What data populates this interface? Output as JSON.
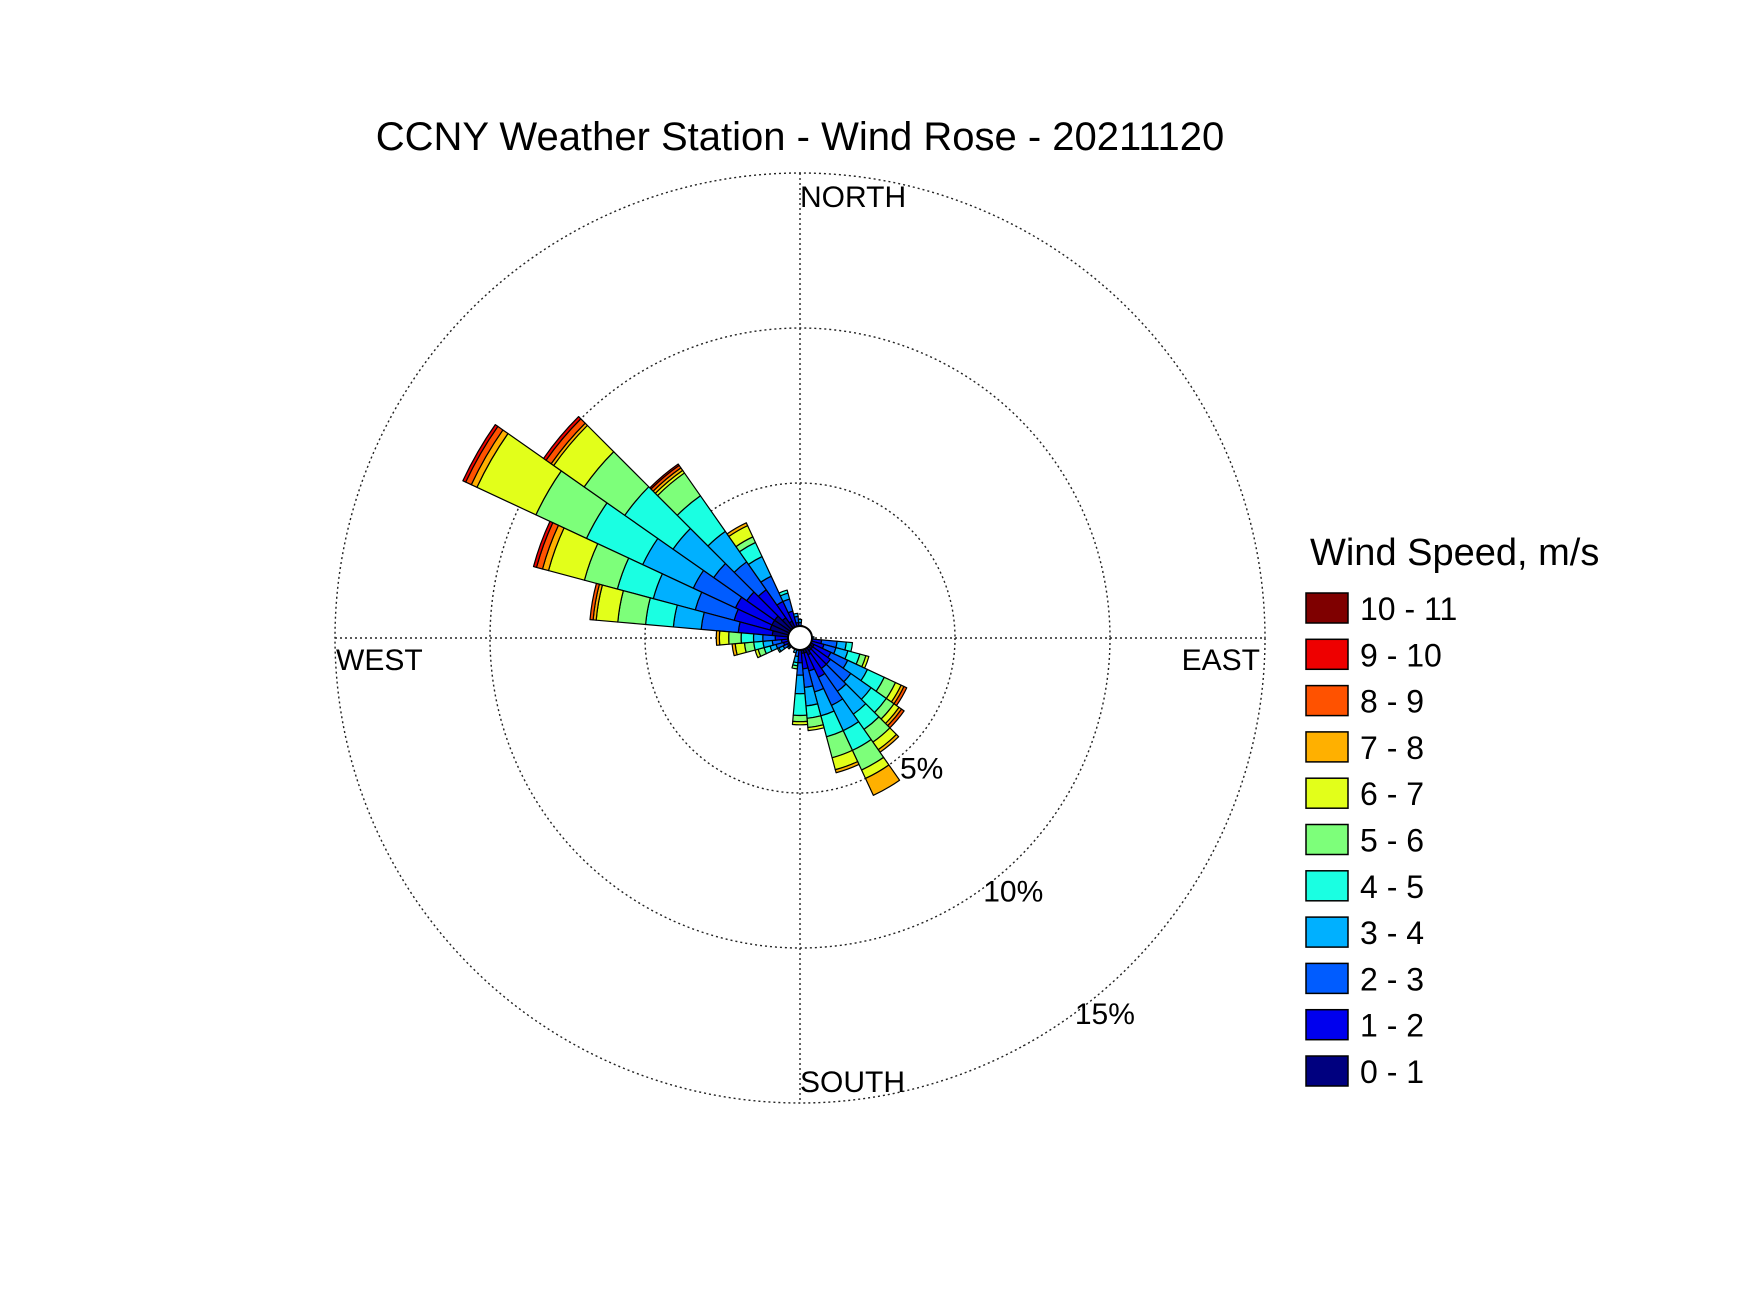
{
  "chart_data": {
    "type": "windrose",
    "title": "CCNY Weather Station - Wind Rose - 20211120",
    "legend_title": "Wind Speed, m/s",
    "legend_position": "right",
    "grid": true,
    "direction_labels": {
      "north": "NORTH",
      "south": "SOUTH",
      "east": "EAST",
      "west": "WEST"
    },
    "radial_axis": {
      "unit": "%",
      "max": 15,
      "rings": [
        5,
        10,
        15
      ],
      "ring_labels": [
        "5%",
        "10%",
        "15%"
      ]
    },
    "speed_bins": [
      {
        "label": "0 - 1",
        "color": "#00007f"
      },
      {
        "label": "1 - 2",
        "color": "#0000ee"
      },
      {
        "label": "2 - 3",
        "color": "#005cff"
      },
      {
        "label": "3 - 4",
        "color": "#00b0ff"
      },
      {
        "label": "4 - 5",
        "color": "#1affe2"
      },
      {
        "label": "5 - 6",
        "color": "#7dff7a"
      },
      {
        "label": "6 - 7",
        "color": "#e2ff1a"
      },
      {
        "label": "7 - 8",
        "color": "#ffb000"
      },
      {
        "label": "8 - 9",
        "color": "#ff5200"
      },
      {
        "label": "9 - 10",
        "color": "#ee0000"
      },
      {
        "label": "10 - 11",
        "color": "#7f0000"
      }
    ],
    "sector_width_deg": 10,
    "series_note_order": "cumulative % frequency per speed bin, low to high",
    "sectors": [
      {
        "direction_deg": 300,
        "cumulative": [
          1.0,
          2.3,
          3.8,
          5.6,
          7.6,
          9.4,
          11.5,
          11.7,
          11.9,
          12.0,
          12.0
        ]
      },
      {
        "direction_deg": 310,
        "cumulative": [
          1.0,
          2.1,
          3.4,
          5.0,
          6.9,
          8.5,
          9.7,
          9.8,
          10.0,
          10.1,
          10.1
        ]
      },
      {
        "direction_deg": 320,
        "cumulative": [
          0.8,
          1.9,
          3.0,
          4.2,
          5.6,
          6.5,
          6.6,
          6.7,
          6.8,
          6.85,
          6.85
        ]
      },
      {
        "direction_deg": 290,
        "cumulative": [
          1.0,
          2.2,
          3.5,
          4.9,
          6.1,
          7.2,
          8.4,
          8.6,
          8.8,
          8.9,
          8.9
        ]
      },
      {
        "direction_deg": 280,
        "cumulative": [
          0.9,
          2.0,
          3.2,
          4.1,
          5.0,
          5.9,
          6.6,
          6.7,
          6.8,
          6.8,
          6.8
        ]
      },
      {
        "direction_deg": 330,
        "cumulative": [
          0.6,
          1.3,
          2.2,
          2.9,
          3.4,
          3.6,
          4.0,
          4.1,
          4.1,
          4.1,
          4.1
        ]
      },
      {
        "direction_deg": 340,
        "cumulative": [
          0.4,
          0.9,
          1.3,
          1.5,
          1.6,
          1.6,
          1.6,
          1.6,
          1.6,
          1.6,
          1.6
        ]
      },
      {
        "direction_deg": 350,
        "cumulative": [
          0.3,
          0.5,
          0.7,
          0.8,
          0.8,
          0.8,
          0.8,
          0.8,
          0.8,
          0.8,
          0.8
        ]
      },
      {
        "direction_deg": 0,
        "cumulative": [
          0.2,
          0.4,
          0.5,
          0.6,
          0.6,
          0.6,
          0.6,
          0.6,
          0.6,
          0.6,
          0.6
        ]
      },
      {
        "direction_deg": 10,
        "cumulative": [
          0.2,
          0.3,
          0.4,
          0.4,
          0.4,
          0.4,
          0.4,
          0.4,
          0.4,
          0.4,
          0.4
        ]
      },
      {
        "direction_deg": 20,
        "cumulative": [
          0.2,
          0.3,
          0.3,
          0.3,
          0.3,
          0.3,
          0.3,
          0.3,
          0.3,
          0.3,
          0.3
        ]
      },
      {
        "direction_deg": 30,
        "cumulative": [
          0.15,
          0.25,
          0.3,
          0.3,
          0.3,
          0.3,
          0.3,
          0.3,
          0.3,
          0.3,
          0.3
        ]
      },
      {
        "direction_deg": 40,
        "cumulative": [
          0.15,
          0.2,
          0.25,
          0.25,
          0.25,
          0.25,
          0.25,
          0.25,
          0.25,
          0.25,
          0.25
        ]
      },
      {
        "direction_deg": 50,
        "cumulative": [
          0.15,
          0.2,
          0.25,
          0.25,
          0.25,
          0.25,
          0.25,
          0.25,
          0.25,
          0.25,
          0.25
        ]
      },
      {
        "direction_deg": 60,
        "cumulative": [
          0.15,
          0.2,
          0.25,
          0.25,
          0.25,
          0.25,
          0.25,
          0.25,
          0.25,
          0.25,
          0.25
        ]
      },
      {
        "direction_deg": 70,
        "cumulative": [
          0.15,
          0.2,
          0.25,
          0.25,
          0.25,
          0.25,
          0.25,
          0.25,
          0.25,
          0.25,
          0.25
        ]
      },
      {
        "direction_deg": 80,
        "cumulative": [
          0.15,
          0.25,
          0.3,
          0.3,
          0.3,
          0.3,
          0.3,
          0.3,
          0.3,
          0.3,
          0.3
        ]
      },
      {
        "direction_deg": 90,
        "cumulative": [
          0.2,
          0.35,
          0.4,
          0.45,
          0.45,
          0.45,
          0.45,
          0.45,
          0.45,
          0.45,
          0.45
        ]
      },
      {
        "direction_deg": 100,
        "cumulative": [
          0.3,
          0.7,
          1.2,
          1.5,
          1.7,
          1.7,
          1.7,
          1.7,
          1.7,
          1.7,
          1.7
        ]
      },
      {
        "direction_deg": 110,
        "cumulative": [
          0.4,
          0.8,
          1.2,
          1.6,
          2.0,
          2.2,
          2.3,
          2.3,
          2.3,
          2.3,
          2.3
        ]
      },
      {
        "direction_deg": 120,
        "cumulative": [
          0.5,
          1.1,
          1.7,
          2.4,
          3.0,
          3.4,
          3.6,
          3.7,
          3.8,
          3.8,
          3.8
        ]
      },
      {
        "direction_deg": 130,
        "cumulative": [
          0.5,
          1.2,
          2.0,
          2.8,
          3.4,
          3.7,
          3.9,
          4.0,
          4.1,
          4.1,
          4.1
        ]
      },
      {
        "direction_deg": 140,
        "cumulative": [
          0.5,
          1.2,
          2.1,
          3.0,
          3.6,
          4.1,
          4.4,
          4.5,
          4.5,
          4.5,
          4.5
        ]
      },
      {
        "direction_deg": 150,
        "cumulative": [
          0.6,
          1.4,
          2.4,
          3.3,
          4.0,
          4.7,
          5.0,
          5.6,
          5.6,
          5.6,
          5.6
        ]
      },
      {
        "direction_deg": 160,
        "cumulative": [
          0.5,
          1.1,
          1.8,
          2.6,
          3.3,
          4.0,
          4.4,
          4.5,
          4.5,
          4.5,
          4.5
        ]
      },
      {
        "direction_deg": 170,
        "cumulative": [
          0.5,
          1.0,
          1.6,
          2.2,
          2.6,
          2.9,
          3.0,
          3.0,
          3.0,
          3.0,
          3.0
        ]
      },
      {
        "direction_deg": 180,
        "cumulative": [
          0.4,
          0.8,
          1.2,
          1.8,
          2.5,
          2.7,
          2.8,
          2.8,
          2.8,
          2.8,
          2.8
        ]
      },
      {
        "direction_deg": 190,
        "cumulative": [
          0.2,
          0.4,
          0.6,
          0.8,
          0.9,
          1.0,
          1.0,
          1.0,
          1.0,
          1.0,
          1.0
        ]
      },
      {
        "direction_deg": 200,
        "cumulative": [
          0.2,
          0.3,
          0.4,
          0.5,
          0.5,
          0.5,
          0.5,
          0.5,
          0.5,
          0.5,
          0.5
        ]
      },
      {
        "direction_deg": 210,
        "cumulative": [
          0.2,
          0.3,
          0.4,
          0.4,
          0.4,
          0.4,
          0.4,
          0.4,
          0.4,
          0.4,
          0.4
        ]
      },
      {
        "direction_deg": 220,
        "cumulative": [
          0.2,
          0.3,
          0.35,
          0.35,
          0.35,
          0.35,
          0.35,
          0.35,
          0.35,
          0.35,
          0.35
        ]
      },
      {
        "direction_deg": 230,
        "cumulative": [
          0.2,
          0.35,
          0.45,
          0.5,
          0.5,
          0.5,
          0.5,
          0.5,
          0.5,
          0.5,
          0.5
        ]
      },
      {
        "direction_deg": 240,
        "cumulative": [
          0.25,
          0.45,
          0.6,
          0.75,
          0.8,
          0.8,
          0.8,
          0.8,
          0.8,
          0.8,
          0.8
        ]
      },
      {
        "direction_deg": 250,
        "cumulative": [
          0.3,
          0.55,
          0.8,
          1.0,
          1.2,
          1.4,
          1.5,
          1.5,
          1.5,
          1.5,
          1.5
        ]
      },
      {
        "direction_deg": 260,
        "cumulative": [
          0.3,
          0.6,
          0.9,
          1.2,
          1.5,
          1.8,
          2.1,
          2.2,
          2.2,
          2.2,
          2.2
        ]
      },
      {
        "direction_deg": 270,
        "cumulative": [
          0.4,
          0.8,
          1.2,
          1.5,
          1.9,
          2.3,
          2.6,
          2.7,
          2.7,
          2.7,
          2.7
        ]
      }
    ]
  }
}
